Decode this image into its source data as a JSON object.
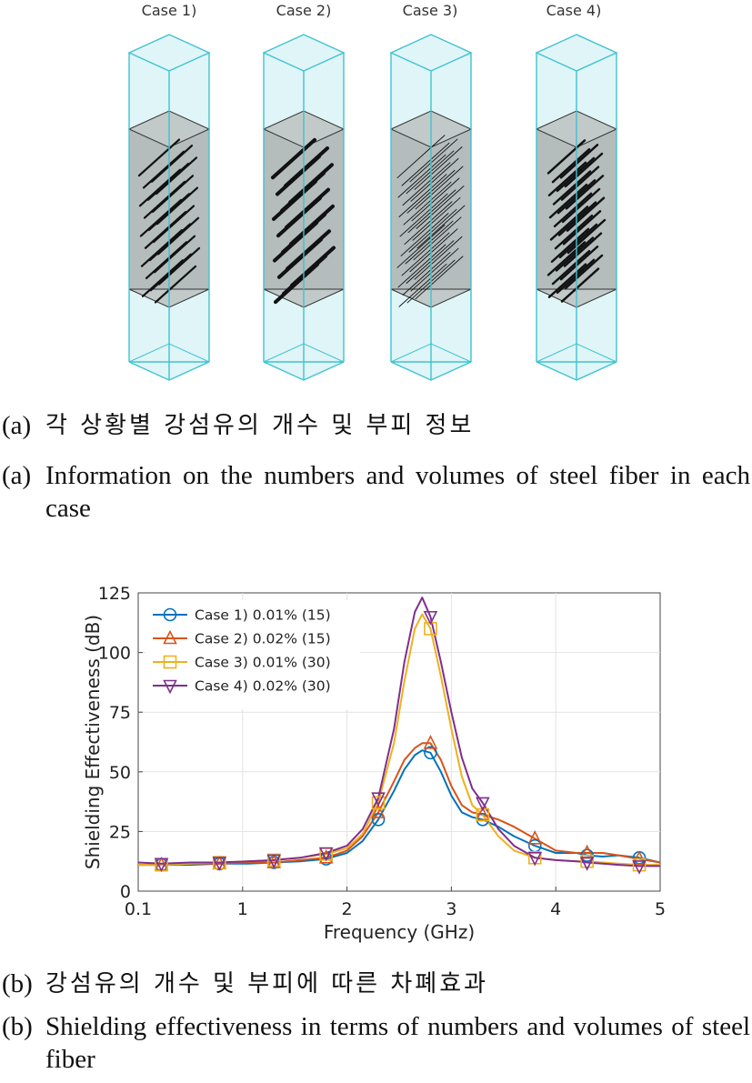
{
  "figure_a": {
    "case_labels": [
      "Case 1)",
      "Case 2)",
      "Case 3)",
      "Case 4)"
    ]
  },
  "captions": {
    "a_ko_label": "(a)",
    "a_ko_text": "각 상황별 강섬유의 개수 및 부피 정보",
    "a_en_label": "(a)",
    "a_en_text": "Information on the numbers and volumes of steel fiber in each case",
    "b_ko_label": "(b)",
    "b_ko_text": "강섬유의 개수 및 부피에 따른 차폐효과",
    "b_en_label": "(b)",
    "b_en_text": "Shielding effectiveness in terms of numbers and volumes of steel fiber"
  },
  "colors": {
    "box_edge": "#3fc3cf",
    "box_fill": "#dff5f8",
    "slab_fill": "#b4bcbc",
    "fiber": "#111111"
  },
  "chart_data": {
    "type": "line",
    "xlabel": "Frequency (GHz)",
    "ylabel": "Shielding Effectiveness (dB)",
    "xlim": [
      0.1,
      5
    ],
    "ylim": [
      0,
      125
    ],
    "xticks": [
      0.1,
      1,
      2,
      3,
      4,
      5
    ],
    "xtick_labels": [
      "0.1",
      "1",
      "2",
      "3",
      "4",
      "5"
    ],
    "yticks": [
      0,
      25,
      50,
      75,
      100,
      125
    ],
    "ytick_labels": [
      "0",
      "25",
      "50",
      "75",
      "100",
      "125"
    ],
    "grid": true,
    "legend_position": "top-left",
    "x": [
      0.1,
      0.3,
      0.55,
      0.8,
      1.05,
      1.3,
      1.55,
      1.8,
      2.0,
      2.15,
      2.3,
      2.45,
      2.55,
      2.65,
      2.72,
      2.8,
      2.9,
      3.0,
      3.1,
      3.2,
      3.3,
      3.45,
      3.6,
      3.8,
      4.0,
      4.2,
      4.3,
      4.45,
      4.6,
      4.8,
      5.0
    ],
    "series": [
      {
        "name": "Case 1) 0.01% (15)",
        "color": "#0072bd",
        "marker": "circle",
        "values": [
          11,
          11,
          11,
          11.5,
          11.5,
          12,
          12.5,
          13.5,
          16,
          21,
          30,
          42,
          51,
          57,
          59,
          58,
          50,
          40,
          33,
          31,
          30,
          27,
          23,
          19,
          16,
          16,
          15,
          14.5,
          15,
          14,
          12
        ]
      },
      {
        "name": "Case 2) 0.02% (15)",
        "color": "#d95319",
        "marker": "triangle-up",
        "values": [
          11,
          11,
          11.5,
          11.5,
          12,
          12,
          13,
          14,
          17,
          23,
          33,
          46,
          55,
          60,
          62,
          62,
          55,
          44,
          36,
          33,
          32,
          30,
          27,
          22,
          17,
          16,
          16,
          16,
          15,
          13.5,
          12
        ]
      },
      {
        "name": "Case 3) 0.01% (30)",
        "color": "#edb120",
        "marker": "square",
        "values": [
          11,
          11,
          11.5,
          12,
          12.5,
          13,
          14,
          15.5,
          18,
          24,
          37,
          62,
          88,
          110,
          116,
          110,
          90,
          68,
          48,
          36,
          32,
          23,
          17,
          14,
          13,
          12.5,
          12.5,
          12,
          11.5,
          11,
          11
        ]
      },
      {
        "name": "Case 4) 0.02% (30)",
        "color": "#7e2f8e",
        "marker": "triangle-down",
        "values": [
          12,
          11.5,
          12,
          12,
          12.5,
          13,
          14,
          16,
          19,
          26,
          39,
          68,
          96,
          117,
          123,
          115,
          96,
          75,
          56,
          43,
          37,
          26,
          19,
          14,
          13,
          12.5,
          12,
          11.5,
          11,
          10.5,
          10.5
        ]
      }
    ],
    "marker_x": [
      0.3,
      0.8,
      1.3,
      1.8,
      2.3,
      2.8,
      3.3,
      3.8,
      4.3,
      4.8
    ],
    "marker_values": [
      [
        11,
        11.5,
        12,
        13.5,
        30,
        58,
        30,
        19,
        15,
        14
      ],
      [
        11,
        11.5,
        12,
        14,
        33,
        62,
        32,
        22,
        16,
        13.5
      ],
      [
        11,
        12,
        13,
        15.5,
        37,
        110,
        32,
        14,
        12.5,
        11
      ],
      [
        11.5,
        12,
        13,
        16,
        39,
        115,
        37,
        14,
        12,
        10.5
      ]
    ]
  }
}
